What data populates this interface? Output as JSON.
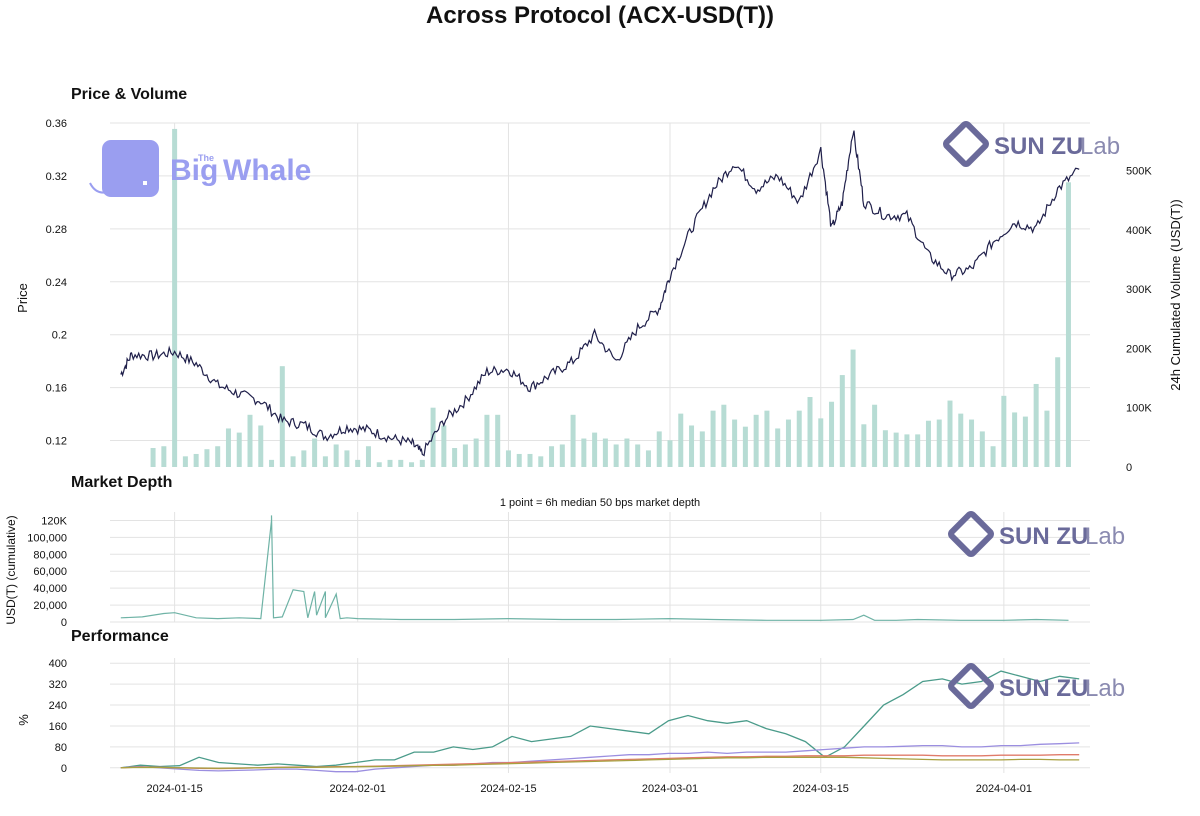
{
  "title": "Across Protocol (ACX-USD(T))",
  "sections": {
    "price_volume": "Price & Volume",
    "depth": "Market Depth",
    "performance": "Performance"
  },
  "depth_note": "1 point = 6h median 50 bps market depth",
  "logos": {
    "big_whale": {
      "the": "The",
      "big": "Big",
      "whale": "Whale"
    },
    "sun_zu": {
      "main": "SUN ZU",
      "lab": "Lab"
    }
  },
  "colors": {
    "price": "#1f1f4a",
    "volume": "#b7dcd4",
    "depth": "#6fb3a6",
    "perf_teal": "#4a9b8a",
    "perf_purple": "#9b8ee0",
    "perf_red": "#e07b6a",
    "perf_olive": "#a8a040",
    "whale_logo": "#9a9ef0",
    "sunzu_logo": "#6a6a9a"
  },
  "chart_data": [
    {
      "type": "line",
      "panel": "price_volume",
      "title": "Price & Volume",
      "ylabel": "Price",
      "y2label": "24h Cumulated Volume (USD(T))",
      "ylim": [
        0.1,
        0.36
      ],
      "y2lim": [
        0,
        580000
      ],
      "yticks": [
        "0.12",
        "0.16",
        "0.2",
        "0.24",
        "0.28",
        "0.32",
        "0.36"
      ],
      "y2ticks": [
        "0",
        "100K",
        "200K",
        "300K",
        "400K",
        "500K"
      ],
      "price_series": {
        "x": [
          "2024-01-10",
          "2024-01-11",
          "2024-01-13",
          "2024-01-15",
          "2024-01-17",
          "2024-01-19",
          "2024-01-21",
          "2024-01-23",
          "2024-01-25",
          "2024-01-27",
          "2024-01-29",
          "2024-01-31",
          "2024-02-02",
          "2024-02-04",
          "2024-02-06",
          "2024-02-07",
          "2024-02-09",
          "2024-02-11",
          "2024-02-13",
          "2024-02-15",
          "2024-02-17",
          "2024-02-19",
          "2024-02-21",
          "2024-02-23",
          "2024-02-25",
          "2024-02-27",
          "2024-02-29",
          "2024-03-01",
          "2024-03-03",
          "2024-03-05",
          "2024-03-07",
          "2024-03-09",
          "2024-03-11",
          "2024-03-13",
          "2024-03-15",
          "2024-03-16",
          "2024-03-17",
          "2024-03-18",
          "2024-03-19",
          "2024-03-21",
          "2024-03-23",
          "2024-03-25",
          "2024-03-27",
          "2024-03-29",
          "2024-03-31",
          "2024-04-02",
          "2024-04-04",
          "2024-04-06",
          "2024-04-08"
        ],
        "values": [
          0.17,
          0.185,
          0.184,
          0.187,
          0.178,
          0.162,
          0.155,
          0.15,
          0.135,
          0.132,
          0.123,
          0.13,
          0.128,
          0.122,
          0.118,
          0.11,
          0.135,
          0.15,
          0.172,
          0.174,
          0.16,
          0.17,
          0.18,
          0.2,
          0.18,
          0.205,
          0.22,
          0.245,
          0.28,
          0.31,
          0.33,
          0.31,
          0.32,
          0.3,
          0.34,
          0.28,
          0.3,
          0.355,
          0.3,
          0.29,
          0.29,
          0.26,
          0.245,
          0.25,
          0.27,
          0.285,
          0.28,
          0.31,
          0.325
        ]
      },
      "volume_series": {
        "categories": [
          "2024-01-13",
          "2024-01-14",
          "2024-01-15",
          "2024-01-16",
          "2024-01-17",
          "2024-01-18",
          "2024-01-19",
          "2024-01-20",
          "2024-01-21",
          "2024-01-22",
          "2024-01-23",
          "2024-01-24",
          "2024-01-25",
          "2024-01-26",
          "2024-01-27",
          "2024-01-28",
          "2024-01-29",
          "2024-01-30",
          "2024-01-31",
          "2024-02-01",
          "2024-02-02",
          "2024-02-03",
          "2024-02-04",
          "2024-02-05",
          "2024-02-06",
          "2024-02-07",
          "2024-02-08",
          "2024-02-09",
          "2024-02-10",
          "2024-02-11",
          "2024-02-12",
          "2024-02-13",
          "2024-02-14",
          "2024-02-15",
          "2024-02-16",
          "2024-02-17",
          "2024-02-18",
          "2024-02-19",
          "2024-02-20",
          "2024-02-21",
          "2024-02-22",
          "2024-02-23",
          "2024-02-24",
          "2024-02-25",
          "2024-02-26",
          "2024-02-27",
          "2024-02-28",
          "2024-02-29",
          "2024-03-01",
          "2024-03-02",
          "2024-03-03",
          "2024-03-04",
          "2024-03-05",
          "2024-03-06",
          "2024-03-07",
          "2024-03-08",
          "2024-03-09",
          "2024-03-10",
          "2024-03-11",
          "2024-03-12",
          "2024-03-13",
          "2024-03-14",
          "2024-03-15",
          "2024-03-16",
          "2024-03-17",
          "2024-03-18",
          "2024-03-19",
          "2024-03-20",
          "2024-03-21",
          "2024-03-22",
          "2024-03-23",
          "2024-03-24",
          "2024-03-25",
          "2024-03-26",
          "2024-03-27",
          "2024-03-28",
          "2024-03-29",
          "2024-03-30",
          "2024-03-31",
          "2024-04-01",
          "2024-04-02",
          "2024-04-03",
          "2024-04-04",
          "2024-04-05",
          "2024-04-06",
          "2024-04-07"
        ],
        "values": [
          32000,
          35000,
          570000,
          18000,
          22000,
          30000,
          35000,
          65000,
          58000,
          88000,
          70000,
          12000,
          170000,
          18000,
          28000,
          48000,
          18000,
          38000,
          28000,
          12000,
          35000,
          8000,
          12000,
          12000,
          8000,
          12000,
          100000,
          70000,
          32000,
          38000,
          48000,
          88000,
          88000,
          28000,
          22000,
          22000,
          18000,
          35000,
          38000,
          88000,
          48000,
          58000,
          48000,
          38000,
          48000,
          38000,
          28000,
          60000,
          45000,
          90000,
          70000,
          60000,
          95000,
          105000,
          80000,
          68000,
          88000,
          95000,
          65000,
          80000,
          95000,
          118000,
          82000,
          110000,
          155000,
          198000,
          72000,
          105000,
          62000,
          58000,
          55000,
          55000,
          78000,
          80000,
          112000,
          90000,
          80000,
          60000,
          35000,
          120000,
          92000,
          85000,
          140000,
          95000,
          185000,
          480000
        ]
      }
    },
    {
      "type": "line",
      "panel": "depth",
      "title": "Market Depth",
      "ylabel": "USD(T) (cumulative)",
      "ylim": [
        0,
        130000
      ],
      "yticks": [
        "0",
        "20,000",
        "40,000",
        "60,000",
        "80,000",
        "100,000",
        "120K"
      ],
      "series": {
        "x": [
          "2024-01-10",
          "2024-01-12",
          "2024-01-14",
          "2024-01-15",
          "2024-01-17",
          "2024-01-19",
          "2024-01-21",
          "2024-01-23",
          "2024-01-24",
          "2024-01-24",
          "2024-01-24",
          "2024-01-25",
          "2024-01-26",
          "2024-01-27",
          "2024-01-27",
          "2024-01-28",
          "2024-01-28",
          "2024-01-29",
          "2024-01-29",
          "2024-01-30",
          "2024-01-30",
          "2024-01-31",
          "2024-02-01",
          "2024-02-05",
          "2024-02-10",
          "2024-02-15",
          "2024-02-20",
          "2024-02-25",
          "2024-03-01",
          "2024-03-05",
          "2024-03-10",
          "2024-03-15",
          "2024-03-18",
          "2024-03-19",
          "2024-03-20",
          "2024-03-22",
          "2024-03-24",
          "2024-03-28",
          "2024-04-01",
          "2024-04-04",
          "2024-04-07"
        ],
        "values": [
          5000,
          6000,
          10000,
          11000,
          5000,
          4000,
          5000,
          4000,
          120000,
          126000,
          5000,
          6000,
          38000,
          36000,
          5000,
          36000,
          8000,
          36000,
          5000,
          33000,
          4000,
          5000,
          4000,
          3000,
          3000,
          4000,
          3000,
          3000,
          4000,
          3000,
          2000,
          2000,
          3000,
          8000,
          2000,
          2000,
          3000,
          2000,
          2000,
          3000,
          2000
        ]
      }
    },
    {
      "type": "line",
      "panel": "performance",
      "title": "Performance",
      "ylabel": "%",
      "ylim": [
        -20,
        420
      ],
      "yticks": [
        "0",
        "80",
        "160",
        "240",
        "320",
        "400"
      ],
      "xticks": [
        "2024-01-15",
        "2024-02-01",
        "2024-02-15",
        "2024-03-01",
        "2024-03-15",
        "2024-04-01"
      ],
      "series": [
        {
          "values": [
            0,
            10,
            5,
            8,
            40,
            20,
            15,
            10,
            15,
            10,
            5,
            10,
            20,
            30,
            30,
            60,
            60,
            80,
            70,
            80,
            120,
            100,
            110,
            120,
            160,
            150,
            140,
            130,
            180,
            200,
            180,
            170,
            180,
            150,
            130,
            100,
            40,
            80,
            160,
            240,
            280,
            330,
            340,
            320,
            330,
            370,
            350,
            330,
            350,
            340
          ]
        },
        {
          "values": [
            0,
            5,
            0,
            -5,
            -10,
            -12,
            -10,
            -8,
            -5,
            -5,
            -10,
            -15,
            -15,
            -5,
            0,
            5,
            10,
            10,
            15,
            20,
            20,
            25,
            30,
            35,
            40,
            45,
            50,
            50,
            55,
            55,
            60,
            55,
            60,
            60,
            60,
            65,
            70,
            75,
            80,
            80,
            82,
            85,
            85,
            80,
            80,
            85,
            85,
            90,
            92,
            95
          ]
        },
        {
          "values": [
            0,
            3,
            2,
            0,
            -2,
            -3,
            -2,
            0,
            2,
            3,
            3,
            4,
            5,
            6,
            8,
            10,
            12,
            14,
            16,
            18,
            20,
            22,
            24,
            26,
            28,
            30,
            32,
            34,
            36,
            38,
            40,
            42,
            42,
            44,
            44,
            46,
            46,
            46,
            48,
            48,
            48,
            48,
            46,
            46,
            46,
            48,
            48,
            48,
            50,
            50
          ]
        },
        {
          "values": [
            0,
            2,
            1,
            0,
            -1,
            -2,
            -1,
            0,
            1,
            2,
            2,
            3,
            4,
            5,
            6,
            8,
            9,
            10,
            12,
            14,
            16,
            18,
            20,
            22,
            24,
            26,
            28,
            30,
            32,
            34,
            36,
            38,
            38,
            40,
            40,
            40,
            40,
            40,
            38,
            36,
            34,
            32,
            30,
            30,
            30,
            30,
            32,
            32,
            30,
            30
          ]
        }
      ]
    }
  ]
}
